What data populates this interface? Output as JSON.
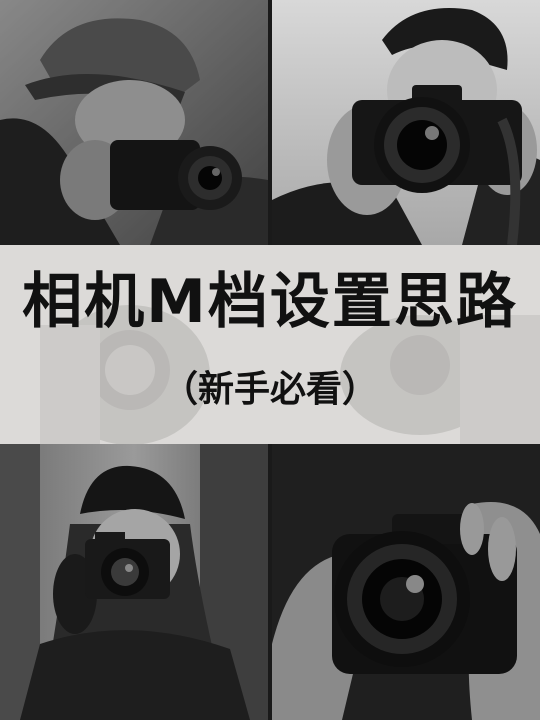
{
  "title": "相机M档设置思路",
  "subtitle": "（新手必看）",
  "photos": [
    {
      "id": "top-left",
      "description_icon": "photographer-with-cap-photo"
    },
    {
      "id": "top-right",
      "description_icon": "photographer-with-dslr-photo"
    },
    {
      "id": "bottom-left",
      "description_icon": "photographer-with-beanie-photo"
    },
    {
      "id": "bottom-right",
      "description_icon": "hands-holding-camera-photo"
    }
  ],
  "colors": {
    "band": "#e6e4e1",
    "text": "#111111",
    "photo_dark": "#1c1c1c",
    "photo_mid": "#6a6a6a",
    "photo_light": "#bdbdbd"
  }
}
